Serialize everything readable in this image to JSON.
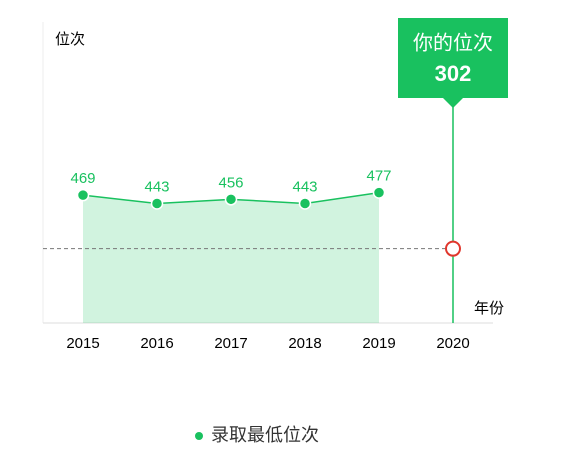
{
  "chart_data": {
    "type": "line",
    "y_label": "位次",
    "x_label": "年份",
    "categories": [
      "2015",
      "2016",
      "2017",
      "2018",
      "2019",
      "2020"
    ],
    "series": [
      {
        "name": "录取最低位次",
        "color": "#19c15f",
        "values": [
          469,
          443,
          456,
          443,
          477,
          null
        ]
      }
    ],
    "highlight": {
      "label": "你的位次",
      "category": "2020",
      "value": 302,
      "color": "#e0362c"
    },
    "ylim": [
      70,
      1000
    ],
    "area": true
  }
}
